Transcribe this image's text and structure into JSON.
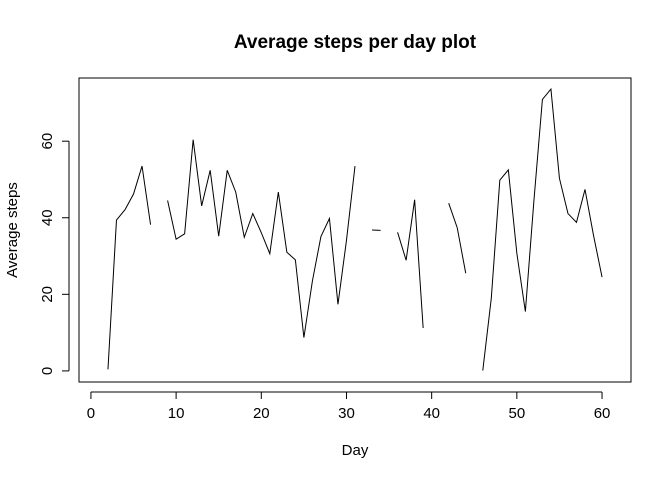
{
  "chart_data": {
    "type": "line",
    "title": "Average steps per day plot",
    "xlabel": "Day",
    "ylabel": "Average steps",
    "xlim": [
      -1.4,
      63.4
    ],
    "ylim": [
      -2.9,
      76.5
    ],
    "xticks": [
      0,
      10,
      20,
      30,
      40,
      50,
      60
    ],
    "yticks": [
      0,
      20,
      40,
      60
    ],
    "grid": false,
    "series": [
      {
        "x": [
          2,
          3,
          4,
          5,
          6,
          7,
          8,
          9,
          10,
          11,
          12,
          13,
          14,
          15,
          16,
          17,
          18,
          19,
          20,
          21,
          22,
          23,
          24,
          25,
          26,
          27,
          28,
          29,
          30,
          31,
          32,
          33,
          34,
          35,
          36,
          37,
          38,
          39,
          40,
          41,
          42,
          43,
          44,
          45,
          46,
          47,
          48,
          49,
          50,
          51,
          52,
          53,
          54,
          55,
          56,
          57,
          58,
          59,
          60
        ],
        "y": [
          0.4,
          39.4,
          42.1,
          46.2,
          53.5,
          38.2,
          null,
          44.5,
          34.4,
          35.8,
          60.4,
          43.1,
          52.4,
          35.2,
          52.4,
          46.7,
          34.9,
          41.1,
          36.1,
          30.6,
          46.7,
          31.0,
          29.0,
          8.7,
          23.5,
          35.1,
          39.8,
          17.4,
          34.1,
          53.5,
          null,
          36.8,
          36.7,
          null,
          36.2,
          28.9,
          44.7,
          11.2,
          null,
          null,
          43.8,
          37.4,
          25.5,
          null,
          0.1,
          19.0,
          49.8,
          52.5,
          30.7,
          15.5,
          44.4,
          70.9,
          73.6,
          50.3,
          41.1,
          38.8,
          47.4,
          35.4,
          24.5
        ]
      }
    ]
  }
}
